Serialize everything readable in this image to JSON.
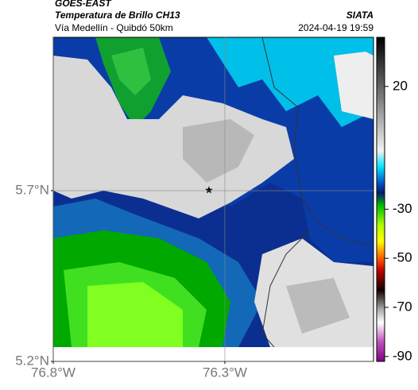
{
  "header": {
    "source": "GOES-EAST",
    "title": "Temperatura de Brillo CH13",
    "subtitle": "Vía Medellín - Quibdó 50km",
    "organization": "SIATA",
    "timestamp": "2024-04-19 19:59"
  },
  "map": {
    "xlim": [
      -76.8,
      -75.867
    ],
    "ylim": [
      5.2,
      6.149
    ],
    "yticks": [
      {
        "value": 5.7,
        "label": "5.7°N"
      },
      {
        "value": 5.2,
        "label": "5.2°N"
      }
    ],
    "xticks": [
      {
        "value": -76.8,
        "label": "76.8°W"
      },
      {
        "value": -76.3,
        "label": "76.3°W"
      }
    ],
    "grid": true
  },
  "colorbar": {
    "lim": [
      -92,
      40
    ],
    "ticks": [
      20,
      -30,
      -50,
      -70,
      -90
    ]
  }
}
